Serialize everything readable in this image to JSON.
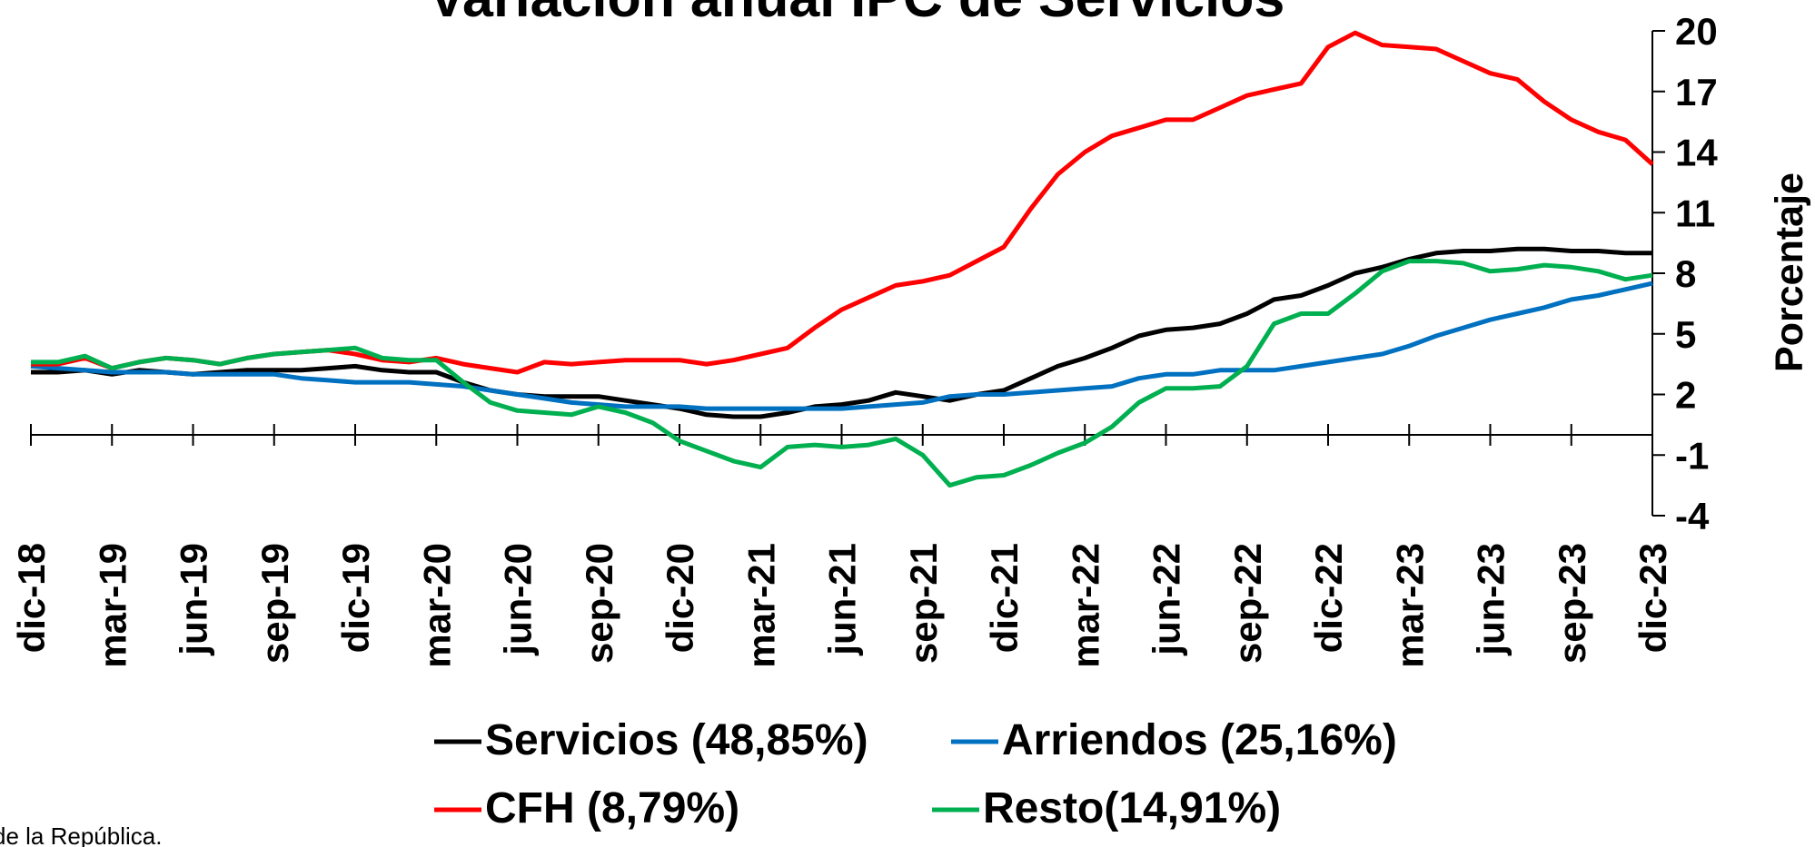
{
  "chart_data": {
    "type": "line",
    "title": "Variación anual IPC de Servicios",
    "y_label": "Porcentaje",
    "source": "de la República.",
    "categories": [
      "dic-18",
      null,
      null,
      "mar-19",
      null,
      null,
      "jun-19",
      null,
      null,
      "sep-19",
      null,
      null,
      "dic-19",
      null,
      null,
      "mar-20",
      null,
      null,
      "jun-20",
      null,
      null,
      "sep-20",
      null,
      null,
      "dic-20",
      null,
      null,
      "mar-21",
      null,
      null,
      "jun-21",
      null,
      null,
      "sep-21",
      null,
      null,
      "dic-21",
      null,
      null,
      "mar-22",
      null,
      null,
      "jun-22",
      null,
      null,
      "sep-22",
      null,
      null,
      "dic-22",
      null,
      null,
      "mar-23",
      null,
      null,
      "jun-23",
      null,
      null,
      "sep-23",
      null,
      null,
      "dic-23"
    ],
    "series": [
      {
        "name": "Servicios (48,85%)",
        "color": "#000000",
        "values": [
          3.1,
          3.1,
          3.2,
          3.0,
          3.2,
          3.1,
          3.0,
          3.1,
          3.2,
          3.2,
          3.2,
          3.3,
          3.4,
          3.2,
          3.1,
          3.1,
          2.6,
          2.2,
          2.0,
          1.9,
          1.9,
          1.9,
          1.7,
          1.5,
          1.3,
          1.0,
          0.9,
          0.9,
          1.1,
          1.4,
          1.5,
          1.7,
          2.1,
          1.9,
          1.7,
          2.0,
          2.2,
          2.8,
          3.4,
          3.8,
          4.3,
          4.9,
          5.2,
          5.3,
          5.5,
          6.0,
          6.7,
          6.9,
          7.4,
          8.0,
          8.3,
          8.7,
          9.0,
          9.1,
          9.1,
          9.2,
          9.2,
          9.1,
          9.1,
          9.0,
          9.0
        ]
      },
      {
        "name": "Arriendos (25,16%)",
        "color": "#0070c0",
        "values": [
          3.4,
          3.3,
          3.2,
          3.1,
          3.1,
          3.1,
          3.0,
          3.0,
          3.0,
          3.0,
          2.8,
          2.7,
          2.6,
          2.6,
          2.6,
          2.5,
          2.4,
          2.2,
          2.0,
          1.8,
          1.6,
          1.5,
          1.4,
          1.4,
          1.4,
          1.3,
          1.3,
          1.3,
          1.3,
          1.3,
          1.3,
          1.4,
          1.5,
          1.6,
          1.9,
          2.0,
          2.0,
          2.1,
          2.2,
          2.3,
          2.4,
          2.8,
          3.0,
          3.0,
          3.2,
          3.2,
          3.2,
          3.4,
          3.6,
          3.8,
          4.0,
          4.4,
          4.9,
          5.3,
          5.7,
          6.0,
          6.3,
          6.7,
          6.9,
          7.2,
          7.5
        ]
      },
      {
        "name": "CFH (8,79%)",
        "color": "#ff0000",
        "values": [
          3.5,
          3.5,
          3.8,
          3.3,
          3.6,
          3.8,
          3.7,
          3.5,
          3.8,
          4.0,
          4.1,
          4.2,
          4.0,
          3.7,
          3.6,
          3.8,
          3.5,
          3.3,
          3.1,
          3.6,
          3.5,
          3.6,
          3.7,
          3.7,
          3.7,
          3.5,
          3.7,
          4.0,
          4.3,
          5.3,
          6.2,
          6.8,
          7.4,
          7.6,
          7.9,
          8.6,
          9.3,
          11.2,
          12.9,
          14.0,
          14.8,
          15.2,
          15.6,
          15.6,
          16.2,
          16.8,
          17.1,
          17.4,
          19.2,
          19.9,
          19.3,
          19.2,
          19.1,
          18.5,
          17.9,
          17.6,
          16.5,
          15.6,
          15.0,
          14.6,
          13.4
        ]
      },
      {
        "name": "Resto(14,91%)",
        "color": "#00b050",
        "values": [
          3.6,
          3.6,
          3.9,
          3.3,
          3.6,
          3.8,
          3.7,
          3.5,
          3.8,
          4.0,
          4.1,
          4.2,
          4.3,
          3.8,
          3.7,
          3.7,
          2.6,
          1.6,
          1.2,
          1.1,
          1.0,
          1.4,
          1.1,
          0.6,
          -0.3,
          -0.8,
          -1.3,
          -1.6,
          -0.6,
          -0.5,
          -0.6,
          -0.5,
          -0.2,
          -1.0,
          -2.5,
          -2.1,
          -2.0,
          -1.5,
          -0.9,
          -0.4,
          0.4,
          1.6,
          2.3,
          2.3,
          2.4,
          3.4,
          5.5,
          6.0,
          6.0,
          7.0,
          8.1,
          8.6,
          8.6,
          8.5,
          8.1,
          8.2,
          8.4,
          8.3,
          8.1,
          7.7,
          7.9
        ]
      }
    ],
    "ylim": [
      -4,
      20
    ],
    "yticks": [
      -4,
      -1,
      2,
      5,
      8,
      11,
      14,
      17,
      20
    ],
    "y_axis_side": "right",
    "grid": false
  }
}
